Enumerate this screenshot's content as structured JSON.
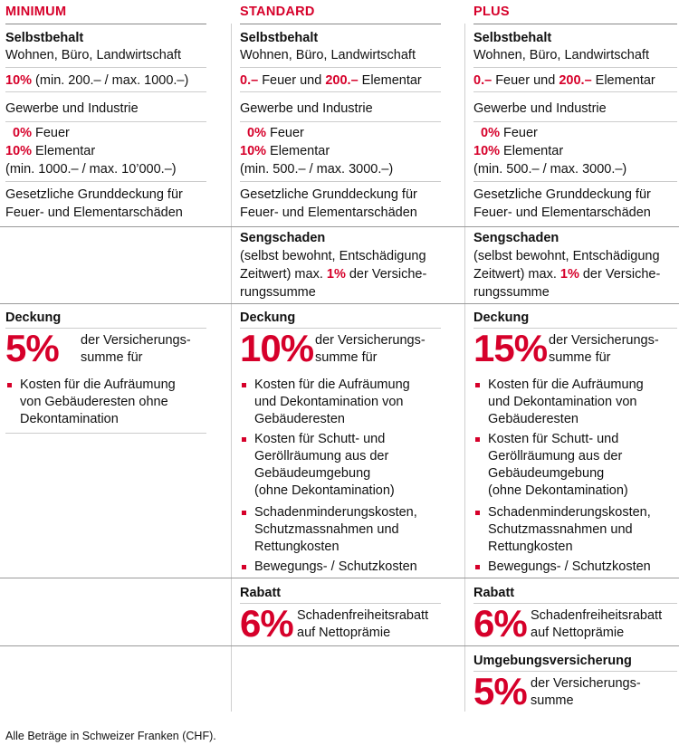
{
  "columns": [
    {
      "id": "minimum",
      "header": "MINIMUM",
      "selbstbehalt": {
        "title": "Selbstbehalt",
        "subtitle": "Wohnen, Büro, Landwirtschaft",
        "line": {
          "a": "10%",
          "b": " (min. 200.– / max. 1000.–)",
          "c": "",
          "d": ""
        }
      },
      "gewerbe": "Gewerbe und Industrie",
      "feuer": {
        "pct": "0%",
        "text": " Feuer"
      },
      "elementar": {
        "pct": "10%",
        "text": " Elementar"
      },
      "minmax": "(min. 1000.– / max. 10’000.–)",
      "gesetz": [
        "Gesetzliche Grunddeckung für",
        "Feuer- und Elementarschäden"
      ],
      "deckung": {
        "title": "Deckung",
        "pct": "5%",
        "text": [
          "der Versicherungs-",
          "summe für"
        ],
        "bullets": [
          [
            "Kosten für die Aufräumung",
            "von Gebäuderesten ohne",
            "Dekontamination"
          ]
        ]
      }
    },
    {
      "id": "standard",
      "header": "STANDARD",
      "selbstbehalt": {
        "title": "Selbstbehalt",
        "subtitle": "Wohnen, Büro, Landwirtschaft",
        "line": {
          "a": "0.–",
          "b": " Feuer und ",
          "c": "200.–",
          "d": " Elementar"
        }
      },
      "gewerbe": "Gewerbe und Industrie",
      "feuer": {
        "pct": "0%",
        "text": " Feuer"
      },
      "elementar": {
        "pct": "10%",
        "text": " Elementar"
      },
      "minmax": "(min. 500.– / max. 3000.–)",
      "gesetz": [
        "Gesetzliche Grunddeckung für",
        "Feuer- und Elementarschäden"
      ],
      "sengschaden": {
        "title": "Sengschaden",
        "lines": [
          "(selbst bewohnt, Entschädigung",
          "Zeitwert) max. ",
          "1%",
          " der Versiche-",
          "rungssumme"
        ]
      },
      "deckung": {
        "title": "Deckung",
        "pct": "10%",
        "text": [
          "der Versicherungs-",
          "summe für"
        ],
        "bullets": [
          [
            "Kosten für die Aufräumung",
            "und Dekontamination von",
            "Gebäuderesten"
          ],
          [
            "Kosten für Schutt- und",
            "Geröllräumung aus der",
            "Gebäudeumgebung",
            "(ohne Dekontamination)"
          ],
          [
            "Schadenminderungskosten,",
            "Schutzmassnahmen und",
            "Rettungkosten"
          ],
          [
            "Bewegungs- / Schutzkosten"
          ]
        ]
      },
      "rabatt": {
        "title": "Rabatt",
        "pct": "6%",
        "text": [
          "Schadenfreiheitsrabatt",
          "auf Nettoprämie"
        ]
      }
    },
    {
      "id": "plus",
      "header": "PLUS",
      "selbstbehalt": {
        "title": "Selbstbehalt",
        "subtitle": "Wohnen, Büro, Landwirtschaft",
        "line": {
          "a": "0.–",
          "b": " Feuer und ",
          "c": "200.–",
          "d": " Elementar"
        }
      },
      "gewerbe": "Gewerbe und Industrie",
      "feuer": {
        "pct": "0%",
        "text": " Feuer"
      },
      "elementar": {
        "pct": "10%",
        "text": " Elementar"
      },
      "minmax": "(min. 500.– / max. 3000.–)",
      "gesetz": [
        "Gesetzliche Grunddeckung für",
        "Feuer- und Elementarschäden"
      ],
      "sengschaden": {
        "title": "Sengschaden",
        "lines": [
          "(selbst bewohnt, Entschädigung",
          "Zeitwert) max. ",
          "1%",
          " der Versiche-",
          "rungssumme"
        ]
      },
      "deckung": {
        "title": "Deckung",
        "pct": "15%",
        "text": [
          "der Versicherungs-",
          "summe für"
        ],
        "bullets": [
          [
            "Kosten für die Aufräumung",
            "und Dekontamination von",
            "Gebäuderesten"
          ],
          [
            "Kosten für Schutt- und",
            "Geröllräumung aus der",
            "Gebäudeumgebung",
            "(ohne Dekontamination)"
          ],
          [
            "Schadenminderungskosten,",
            "Schutzmassnahmen und",
            "Rettungkosten"
          ],
          [
            "Bewegungs- / Schutzkosten"
          ]
        ]
      },
      "rabatt": {
        "title": "Rabatt",
        "pct": "6%",
        "text": [
          "Schadenfreiheitsrabatt",
          "auf Nettoprämie"
        ]
      },
      "umgebung": {
        "title": "Umgebungsversicherung",
        "pct": "5%",
        "text": [
          "der Versicherungs-",
          "summe"
        ]
      }
    }
  ],
  "footer": "Alle Beträge in Schweizer Franken (CHF).",
  "colors": {
    "accent": "#d6002a",
    "text": "#111111",
    "rule": "#9a9a9a"
  }
}
